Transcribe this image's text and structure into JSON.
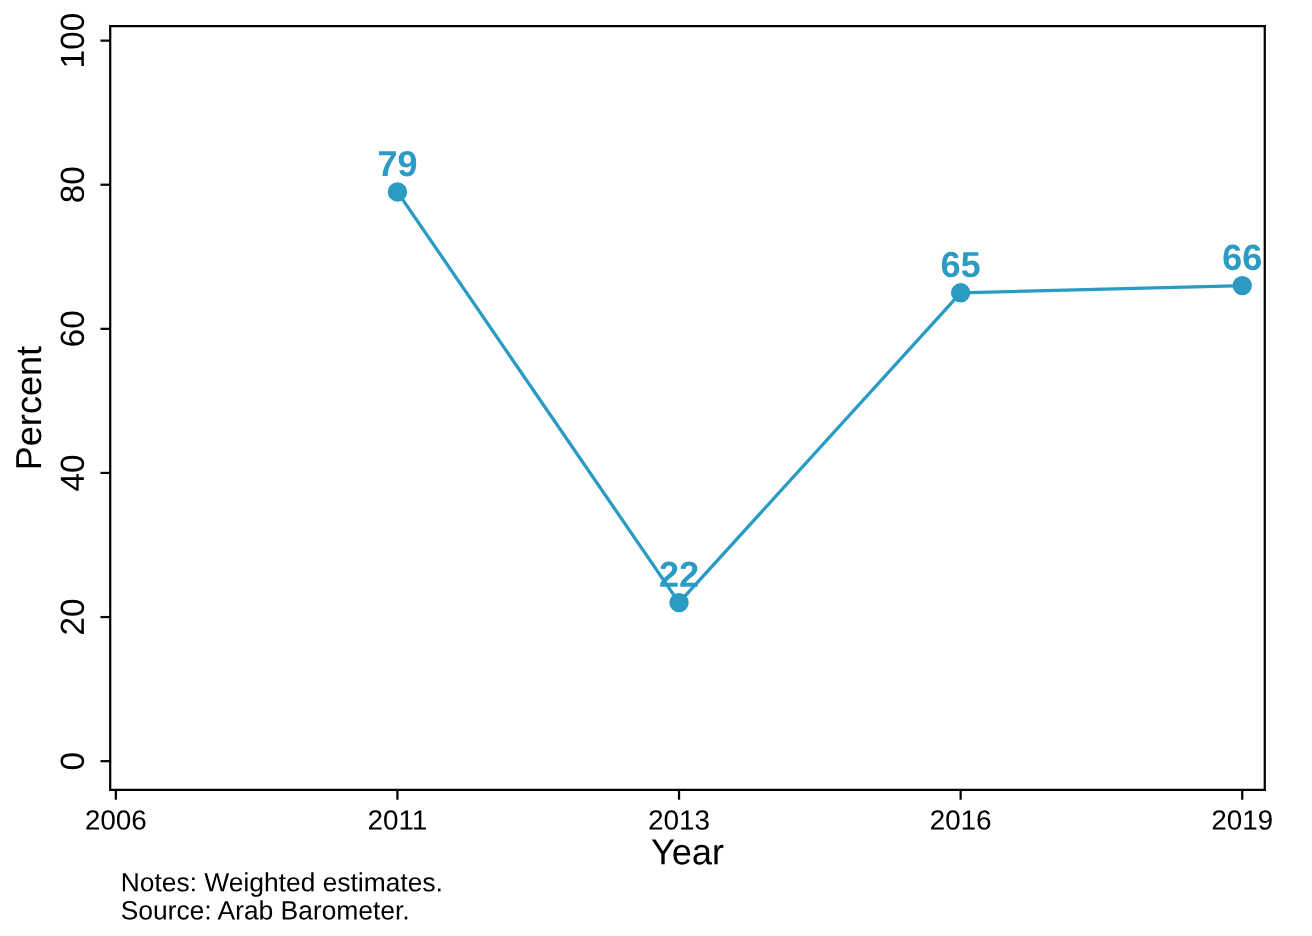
{
  "chart_data": {
    "type": "line",
    "xlabel": "Year",
    "ylabel": "Percent",
    "categories": [
      "2006",
      "2011",
      "2013",
      "2016",
      "2019"
    ],
    "series": [
      {
        "color": "#2a9bc3",
        "values": [
          null,
          79,
          22,
          65,
          66
        ]
      }
    ],
    "ylim": [
      -4,
      102
    ],
    "yticks": [
      0,
      20,
      40,
      60,
      80,
      100
    ],
    "marker": "circle",
    "line_style": "solid",
    "data_labels": true,
    "grid": false,
    "legend": false,
    "annotations": [
      "Notes: Weighted estimates.",
      "Source: Arab Barometer."
    ]
  }
}
